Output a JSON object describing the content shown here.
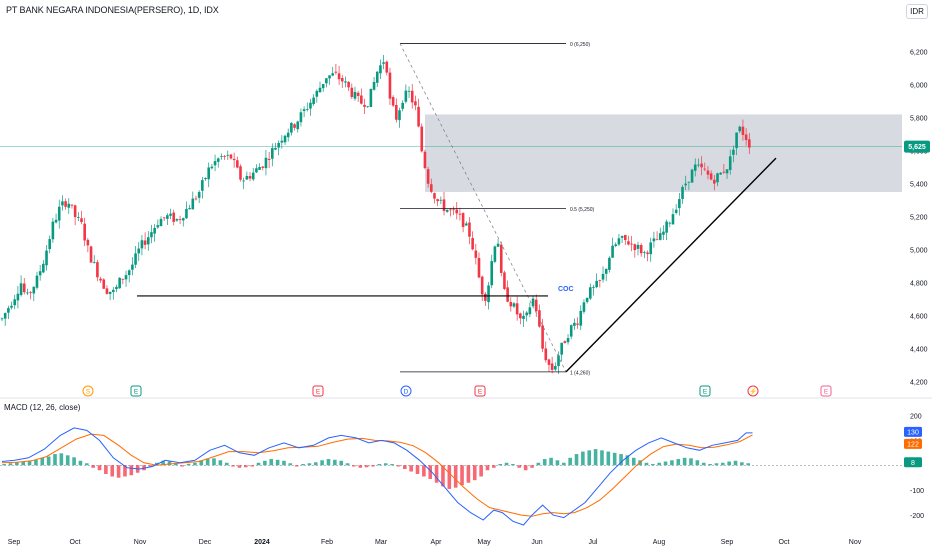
{
  "title": "PT BANK NEGARA INDONESIA(PERSERO), 1D, IDX",
  "currency": "IDR",
  "colors": {
    "up": "#089981",
    "down": "#f23645",
    "zone": "#d1d4dc",
    "macd": "#2962ff",
    "signal": "#ff6d00",
    "current_price": "#089981"
  },
  "chart_data": [
    {
      "type": "candlestick",
      "ylim": [
        4150,
        6380
      ],
      "yticks": [
        "6,200",
        "6,000",
        "5,800",
        "5,600",
        "5,400",
        "5,200",
        "5,000",
        "4,800",
        "4,600",
        "4,400",
        "4,200"
      ],
      "xticks": [
        "Sep",
        "Oct",
        "Nov",
        "Dec",
        "2024",
        "Feb",
        "Mar",
        "Apr",
        "May",
        "Jun",
        "Jul",
        "Aug",
        "Sep",
        "Oct",
        "Nov"
      ],
      "current_price": "5,625",
      "price_path": [
        [
          0,
          4580
        ],
        [
          5,
          4640
        ],
        [
          12,
          4720
        ],
        [
          18,
          4800
        ],
        [
          23,
          4700
        ],
        [
          28,
          4760
        ],
        [
          33,
          4820
        ],
        [
          40,
          4950
        ],
        [
          48,
          5150
        ],
        [
          55,
          5260
        ],
        [
          62,
          5300
        ],
        [
          68,
          5210
        ],
        [
          75,
          5150
        ],
        [
          82,
          4980
        ],
        [
          90,
          4860
        ],
        [
          98,
          4760
        ],
        [
          106,
          4740
        ],
        [
          112,
          4820
        ],
        [
          118,
          4860
        ],
        [
          124,
          4920
        ],
        [
          130,
          5010
        ],
        [
          140,
          5100
        ],
        [
          148,
          5180
        ],
        [
          156,
          5200
        ],
        [
          166,
          5180
        ],
        [
          176,
          5260
        ],
        [
          186,
          5350
        ],
        [
          196,
          5500
        ],
        [
          206,
          5560
        ],
        [
          216,
          5560
        ],
        [
          226,
          5420
        ],
        [
          236,
          5460
        ],
        [
          246,
          5520
        ],
        [
          256,
          5610
        ],
        [
          266,
          5700
        ],
        [
          276,
          5760
        ],
        [
          286,
          5850
        ],
        [
          296,
          5940
        ],
        [
          306,
          6050
        ],
        [
          314,
          6060
        ],
        [
          322,
          6020
        ],
        [
          330,
          5950
        ],
        [
          338,
          5890
        ],
        [
          346,
          5900
        ],
        [
          354,
          6080
        ],
        [
          362,
          6170
        ],
        [
          366,
          5900
        ],
        [
          372,
          5800
        ],
        [
          378,
          5920
        ],
        [
          384,
          5950
        ],
        [
          390,
          5860
        ],
        [
          396,
          5600
        ],
        [
          402,
          5420
        ],
        [
          410,
          5300
        ],
        [
          418,
          5250
        ],
        [
          426,
          5220
        ],
        [
          434,
          5180
        ],
        [
          442,
          5080
        ],
        [
          448,
          4900
        ],
        [
          452,
          4760
        ],
        [
          456,
          4720
        ],
        [
          460,
          4820
        ],
        [
          464,
          5040
        ],
        [
          468,
          5050
        ],
        [
          472,
          4760
        ],
        [
          478,
          4700
        ],
        [
          484,
          4640
        ],
        [
          490,
          4560
        ],
        [
          496,
          4600
        ],
        [
          500,
          4720
        ],
        [
          504,
          4640
        ],
        [
          510,
          4400
        ],
        [
          516,
          4300
        ],
        [
          520,
          4270
        ],
        [
          524,
          4350
        ],
        [
          530,
          4440
        ],
        [
          536,
          4520
        ],
        [
          544,
          4580
        ],
        [
          550,
          4720
        ],
        [
          558,
          4760
        ],
        [
          566,
          4820
        ],
        [
          574,
          4980
        ],
        [
          582,
          5060
        ],
        [
          590,
          5050
        ],
        [
          598,
          5020
        ],
        [
          606,
          4980
        ],
        [
          614,
          5040
        ],
        [
          622,
          5080
        ],
        [
          630,
          5180
        ],
        [
          638,
          5300
        ],
        [
          646,
          5420
        ],
        [
          654,
          5500
        ],
        [
          662,
          5480
        ],
        [
          670,
          5420
        ],
        [
          678,
          5460
        ],
        [
          686,
          5520
        ],
        [
          694,
          5740
        ],
        [
          698,
          5720
        ],
        [
          702,
          5680
        ],
        [
          706,
          5630
        ]
      ],
      "retracement_levels": [
        {
          "label": "0 (6,250)",
          "price": 6250
        },
        {
          "label": "0.5 (5,250)",
          "price": 5250
        },
        {
          "label": "1 (4,260)",
          "price": 4260
        }
      ],
      "zone": {
        "top": 5820,
        "bottom": 5350
      },
      "coc": {
        "label": "COC",
        "price": 4720
      },
      "trendline": {
        "from": 4260,
        "to": 5555
      }
    },
    {
      "type": "macd",
      "title": "MACD (12, 26, close)",
      "ylim": [
        -260,
        230
      ],
      "yticks": [
        "200",
        "100",
        "-100",
        "-200"
      ],
      "macd_value": "130",
      "signal_value": "122",
      "histogram_value": "8",
      "macd_path": [
        [
          0,
          15
        ],
        [
          12,
          20
        ],
        [
          25,
          30
        ],
        [
          40,
          65
        ],
        [
          55,
          120
        ],
        [
          68,
          150
        ],
        [
          80,
          140
        ],
        [
          92,
          100
        ],
        [
          105,
          30
        ],
        [
          118,
          -10
        ],
        [
          130,
          -15
        ],
        [
          142,
          -5
        ],
        [
          154,
          20
        ],
        [
          168,
          10
        ],
        [
          182,
          20
        ],
        [
          196,
          60
        ],
        [
          210,
          80
        ],
        [
          224,
          50
        ],
        [
          238,
          40
        ],
        [
          252,
          70
        ],
        [
          266,
          90
        ],
        [
          280,
          70
        ],
        [
          294,
          80
        ],
        [
          308,
          110
        ],
        [
          320,
          120
        ],
        [
          334,
          110
        ],
        [
          346,
          90
        ],
        [
          358,
          100
        ],
        [
          370,
          90
        ],
        [
          382,
          60
        ],
        [
          394,
          20
        ],
        [
          406,
          -30
        ],
        [
          418,
          -90
        ],
        [
          430,
          -150
        ],
        [
          442,
          -190
        ],
        [
          454,
          -220
        ],
        [
          464,
          -180
        ],
        [
          472,
          -190
        ],
        [
          482,
          -225
        ],
        [
          492,
          -240
        ],
        [
          500,
          -200
        ],
        [
          510,
          -160
        ],
        [
          520,
          -200
        ],
        [
          530,
          -210
        ],
        [
          540,
          -180
        ],
        [
          550,
          -150
        ],
        [
          562,
          -90
        ],
        [
          574,
          -30
        ],
        [
          586,
          20
        ],
        [
          598,
          60
        ],
        [
          610,
          90
        ],
        [
          622,
          110
        ],
        [
          634,
          90
        ],
        [
          646,
          70
        ],
        [
          658,
          60
        ],
        [
          670,
          80
        ],
        [
          682,
          90
        ],
        [
          694,
          100
        ],
        [
          702,
          130
        ],
        [
          708,
          130
        ]
      ],
      "signal_path": [
        [
          0,
          10
        ],
        [
          14,
          12
        ],
        [
          28,
          18
        ],
        [
          42,
          35
        ],
        [
          56,
          70
        ],
        [
          70,
          105
        ],
        [
          84,
          125
        ],
        [
          96,
          120
        ],
        [
          110,
          80
        ],
        [
          122,
          40
        ],
        [
          134,
          10
        ],
        [
          146,
          0
        ],
        [
          158,
          5
        ],
        [
          172,
          10
        ],
        [
          186,
          15
        ],
        [
          200,
          35
        ],
        [
          214,
          55
        ],
        [
          228,
          55
        ],
        [
          242,
          50
        ],
        [
          256,
          58
        ],
        [
          270,
          70
        ],
        [
          284,
          72
        ],
        [
          298,
          76
        ],
        [
          312,
          92
        ],
        [
          326,
          105
        ],
        [
          340,
          108
        ],
        [
          352,
          100
        ],
        [
          364,
          98
        ],
        [
          376,
          92
        ],
        [
          388,
          78
        ],
        [
          400,
          50
        ],
        [
          412,
          10
        ],
        [
          424,
          -40
        ],
        [
          436,
          -90
        ],
        [
          448,
          -135
        ],
        [
          460,
          -170
        ],
        [
          470,
          -180
        ],
        [
          480,
          -190
        ],
        [
          490,
          -200
        ],
        [
          500,
          -205
        ],
        [
          510,
          -195
        ],
        [
          520,
          -190
        ],
        [
          530,
          -195
        ],
        [
          540,
          -190
        ],
        [
          552,
          -170
        ],
        [
          564,
          -140
        ],
        [
          576,
          -95
        ],
        [
          588,
          -45
        ],
        [
          600,
          5
        ],
        [
          612,
          45
        ],
        [
          624,
          75
        ],
        [
          636,
          85
        ],
        [
          648,
          80
        ],
        [
          660,
          70
        ],
        [
          672,
          72
        ],
        [
          684,
          82
        ],
        [
          696,
          95
        ],
        [
          708,
          122
        ]
      ],
      "histogram_bars": [
        [
          2,
          5
        ],
        [
          8,
          8
        ],
        [
          14,
          12
        ],
        [
          20,
          15
        ],
        [
          26,
          18
        ],
        [
          32,
          22
        ],
        [
          38,
          30
        ],
        [
          44,
          35
        ],
        [
          50,
          45
        ],
        [
          56,
          48
        ],
        [
          62,
          40
        ],
        [
          68,
          32
        ],
        [
          74,
          18
        ],
        [
          80,
          8
        ],
        [
          86,
          -10
        ],
        [
          92,
          -20
        ],
        [
          98,
          -35
        ],
        [
          104,
          -45
        ],
        [
          110,
          -50
        ],
        [
          116,
          -45
        ],
        [
          122,
          -40
        ],
        [
          128,
          -30
        ],
        [
          134,
          -20
        ],
        [
          140,
          -5
        ],
        [
          146,
          10
        ],
        [
          152,
          18
        ],
        [
          158,
          15
        ],
        [
          164,
          8
        ],
        [
          170,
          -5
        ],
        [
          176,
          6
        ],
        [
          182,
          10
        ],
        [
          188,
          20
        ],
        [
          194,
          25
        ],
        [
          200,
          28
        ],
        [
          206,
          20
        ],
        [
          212,
          10
        ],
        [
          218,
          -5
        ],
        [
          224,
          -10
        ],
        [
          230,
          -8
        ],
        [
          236,
          -5
        ],
        [
          242,
          10
        ],
        [
          248,
          18
        ],
        [
          254,
          25
        ],
        [
          260,
          22
        ],
        [
          266,
          18
        ],
        [
          272,
          8
        ],
        [
          278,
          -5
        ],
        [
          284,
          5
        ],
        [
          290,
          8
        ],
        [
          296,
          12
        ],
        [
          302,
          20
        ],
        [
          308,
          25
        ],
        [
          314,
          22
        ],
        [
          320,
          18
        ],
        [
          326,
          8
        ],
        [
          332,
          -5
        ],
        [
          338,
          -10
        ],
        [
          344,
          -8
        ],
        [
          350,
          -5
        ],
        [
          356,
          5
        ],
        [
          362,
          8
        ],
        [
          368,
          5
        ],
        [
          374,
          -5
        ],
        [
          380,
          -15
        ],
        [
          386,
          -25
        ],
        [
          392,
          -35
        ],
        [
          398,
          -45
        ],
        [
          404,
          -55
        ],
        [
          410,
          -70
        ],
        [
          416,
          -85
        ],
        [
          422,
          -95
        ],
        [
          428,
          -90
        ],
        [
          434,
          -80
        ],
        [
          440,
          -70
        ],
        [
          446,
          -60
        ],
        [
          452,
          -45
        ],
        [
          458,
          -20
        ],
        [
          464,
          -10
        ],
        [
          470,
          5
        ],
        [
          476,
          10
        ],
        [
          482,
          5
        ],
        [
          488,
          -10
        ],
        [
          494,
          -20
        ],
        [
          500,
          -10
        ],
        [
          506,
          10
        ],
        [
          512,
          25
        ],
        [
          518,
          30
        ],
        [
          524,
          20
        ],
        [
          530,
          10
        ],
        [
          536,
          30
        ],
        [
          542,
          45
        ],
        [
          548,
          55
        ],
        [
          554,
          60
        ],
        [
          560,
          65
        ],
        [
          566,
          60
        ],
        [
          572,
          55
        ],
        [
          578,
          50
        ],
        [
          584,
          45
        ],
        [
          590,
          40
        ],
        [
          596,
          30
        ],
        [
          602,
          20
        ],
        [
          608,
          10
        ],
        [
          614,
          5
        ],
        [
          620,
          10
        ],
        [
          626,
          15
        ],
        [
          632,
          20
        ],
        [
          638,
          25
        ],
        [
          644,
          30
        ],
        [
          650,
          28
        ],
        [
          656,
          20
        ],
        [
          662,
          10
        ],
        [
          668,
          5
        ],
        [
          674,
          8
        ],
        [
          680,
          10
        ],
        [
          686,
          15
        ],
        [
          692,
          18
        ],
        [
          698,
          12
        ],
        [
          704,
          8
        ]
      ]
    }
  ],
  "event_markers": [
    {
      "label": "S",
      "color": "#ff9800",
      "shape": "circle",
      "x": 88
    },
    {
      "label": "E",
      "color": "#089981",
      "shape": "square",
      "x": 136
    },
    {
      "label": "E",
      "color": "#f23645",
      "shape": "square",
      "x": 318
    },
    {
      "label": "D",
      "color": "#2962ff",
      "shape": "circle",
      "x": 406
    },
    {
      "label": "E",
      "color": "#f23645",
      "shape": "square",
      "x": 480
    },
    {
      "label": "E",
      "color": "#089981",
      "shape": "square",
      "x": 705
    },
    {
      "label": "⚡",
      "color": "#f23645",
      "shape": "circle",
      "x": 753
    },
    {
      "label": "E",
      "color": "#f06292",
      "shape": "square",
      "x": 826
    }
  ]
}
